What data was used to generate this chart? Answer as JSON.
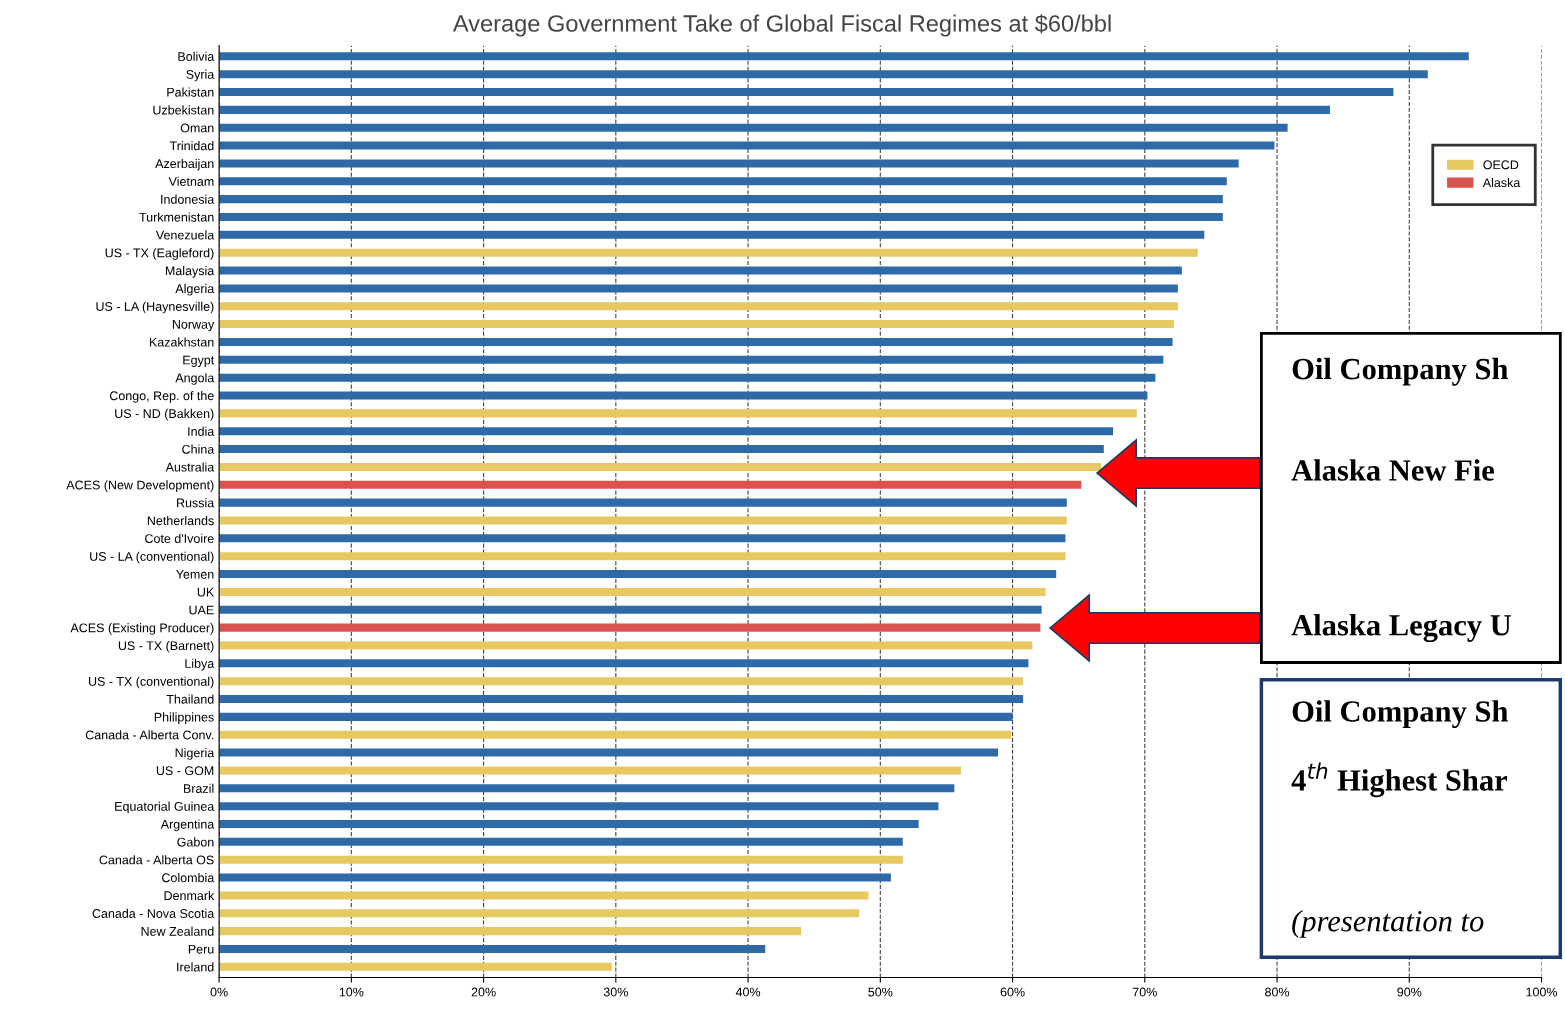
{
  "chart_data": {
    "type": "bar",
    "orientation": "horizontal",
    "title": "Average Government Take of Global Fiscal Regimes at $60/bbl",
    "categories": [
      "Bolivia",
      "Syria",
      "Pakistan",
      "Uzbekistan",
      "Oman",
      "Trinidad",
      "Azerbaijan",
      "Vietnam",
      "Indonesia",
      "Turkmenistan",
      "Venezuela",
      "US - TX (Eagleford)",
      "Malaysia",
      "Algeria",
      "US - LA (Haynesville)",
      "Norway",
      "Kazakhstan",
      "Egypt",
      "Angola",
      "Congo, Rep. of the",
      "US - ND (Bakken)",
      "India",
      "China",
      "Australia",
      "ACES (New Development)",
      "Russia",
      "Netherlands",
      "Cote d'Ivoire",
      "US - LA (conventional)",
      "Yemen",
      "UK",
      "UAE",
      "ACES (Existing Producer)",
      "US - TX (Barnett)",
      "Libya",
      "US - TX (conventional)",
      "Thailand",
      "Philippines",
      "Canada - Alberta Conv.",
      "Nigeria",
      "US - GOM",
      "Brazil",
      "Equatorial Guinea",
      "Argentina",
      "Gabon",
      "Canada - Alberta OS",
      "Colombia",
      "Denmark",
      "Canada - Nova Scotia",
      "New Zealand",
      "Peru",
      "Ireland"
    ],
    "series": [
      {
        "color": "#2e6aa8",
        "values": [
          94.5,
          91.4,
          88.8,
          84.0,
          80.8,
          79.8,
          77.1,
          76.2,
          75.9,
          75.9,
          74.5,
          null,
          72.8,
          72.5,
          null,
          null,
          72.1,
          71.4,
          70.8,
          70.2,
          null,
          67.6,
          66.9,
          null,
          null,
          64.1,
          null,
          64.0,
          null,
          63.3,
          null,
          62.2,
          null,
          null,
          61.2,
          null,
          60.8,
          60.0,
          null,
          58.9,
          null,
          55.6,
          54.4,
          52.9,
          51.7,
          null,
          50.8,
          null,
          null,
          null,
          41.3,
          null
        ]
      },
      {
        "name": "OECD",
        "color": "#e8c860",
        "values": [
          null,
          null,
          null,
          null,
          null,
          null,
          null,
          null,
          null,
          null,
          null,
          74.0,
          null,
          null,
          72.5,
          72.2,
          null,
          null,
          null,
          null,
          69.4,
          null,
          null,
          66.7,
          null,
          null,
          64.1,
          null,
          64.0,
          null,
          62.5,
          null,
          null,
          61.5,
          null,
          60.8,
          null,
          null,
          59.9,
          null,
          56.1,
          null,
          null,
          null,
          null,
          51.7,
          null,
          49.1,
          48.4,
          44.0,
          null,
          29.7
        ]
      },
      {
        "name": "Alaska",
        "color": "#d9534f",
        "values": [
          null,
          null,
          null,
          null,
          null,
          null,
          null,
          null,
          null,
          null,
          null,
          null,
          null,
          null,
          null,
          null,
          null,
          null,
          null,
          null,
          null,
          null,
          null,
          null,
          65.2,
          null,
          null,
          null,
          null,
          null,
          null,
          null,
          62.1,
          null,
          null,
          null,
          null,
          null,
          null,
          null,
          null,
          null,
          null,
          null,
          null,
          null,
          null,
          null,
          null,
          null,
          null,
          null
        ]
      }
    ],
    "xlim": [
      0,
      100
    ],
    "xticks": [
      {
        "value": 0,
        "label": "0%"
      },
      {
        "value": 10,
        "label": "10%"
      },
      {
        "value": 20,
        "label": "20%"
      },
      {
        "value": 30,
        "label": "30%"
      },
      {
        "value": 40,
        "label": "40%"
      },
      {
        "value": 50,
        "label": "50%"
      },
      {
        "value": 60,
        "label": "60%"
      },
      {
        "value": 70,
        "label": "70%"
      },
      {
        "value": 80,
        "label": "80%"
      },
      {
        "value": 90,
        "label": "90%"
      },
      {
        "value": 100,
        "label": "100%"
      }
    ],
    "grid": "x",
    "line_style": "dashed",
    "legend": "top right",
    "annotations": [
      "Oil Company Sh",
      "Alaska New Fie",
      "Alaska Legacy U",
      "Oil Company Sh",
      "4$^{th}$ Highest Shar",
      "(presentation to"
    ]
  }
}
